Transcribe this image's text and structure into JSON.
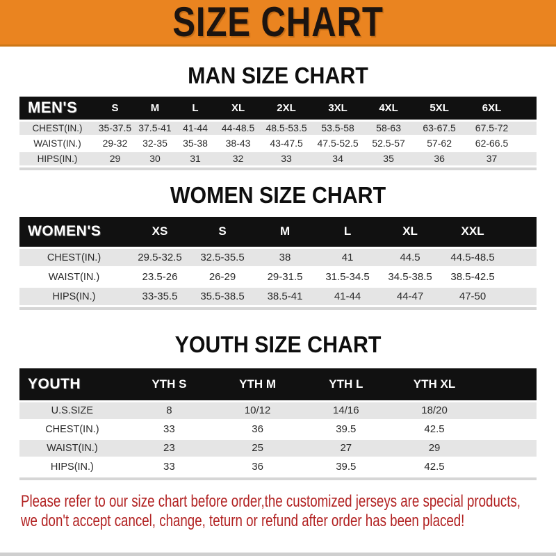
{
  "banner": {
    "title": "SIZE CHART",
    "bg_color": "#EA8420",
    "text_color": "#1c1410"
  },
  "sections": [
    {
      "heading": "MAN SIZE CHART",
      "table": {
        "header_label": "MEN'S",
        "columns": [
          "S",
          "M",
          "L",
          "XL",
          "2XL",
          "3XL",
          "4XL",
          "5XL",
          "6XL"
        ],
        "rows": [
          {
            "label": "CHEST(IN.)",
            "values": [
              "35-37.5",
              "37.5-41",
              "41-44",
              "44-48.5",
              "48.5-53.5",
              "53.5-58",
              "58-63",
              "63-67.5",
              "67.5-72"
            ]
          },
          {
            "label": "WAIST(IN.)",
            "values": [
              "29-32",
              "32-35",
              "35-38",
              "38-43",
              "43-47.5",
              "47.5-52.5",
              "52.5-57",
              "57-62",
              "62-66.5"
            ]
          },
          {
            "label": "HIPS(IN.)",
            "values": [
              "29",
              "30",
              "31",
              "32",
              "33",
              "34",
              "35",
              "36",
              "37"
            ]
          }
        ]
      }
    },
    {
      "heading": "WOMEN SIZE CHART",
      "table": {
        "header_label": "WOMEN'S",
        "columns": [
          "XS",
          "S",
          "M",
          "L",
          "XL",
          "XXL"
        ],
        "rows": [
          {
            "label": "CHEST(IN.)",
            "values": [
              "29.5-32.5",
              "32.5-35.5",
              "38",
              "41",
              "44.5",
              "44.5-48.5"
            ]
          },
          {
            "label": "WAIST(IN.)",
            "values": [
              "23.5-26",
              "26-29",
              "29-31.5",
              "31.5-34.5",
              "34.5-38.5",
              "38.5-42.5"
            ]
          },
          {
            "label": "HIPS(IN.)",
            "values": [
              "33-35.5",
              "35.5-38.5",
              "38.5-41",
              "41-44",
              "44-47",
              "47-50"
            ]
          }
        ]
      }
    },
    {
      "heading": "YOUTH SIZE CHART",
      "table": {
        "header_label": "YOUTH",
        "columns": [
          "YTH S",
          "YTH M",
          "YTH L",
          "YTH XL"
        ],
        "rows": [
          {
            "label": "U.S.SIZE",
            "values": [
              "8",
              "10/12",
              "14/16",
              "18/20"
            ]
          },
          {
            "label": "CHEST(IN.)",
            "values": [
              "33",
              "36",
              "39.5",
              "42.5"
            ]
          },
          {
            "label": "WAIST(IN.)",
            "values": [
              "23",
              "25",
              "27",
              "29"
            ]
          },
          {
            "label": "HIPS(IN.)",
            "values": [
              "33",
              "36",
              "39.5",
              "42.5"
            ]
          }
        ]
      }
    }
  ],
  "footer": {
    "line1": "Please refer to our size chart before order,the customized jerseys are special products,",
    "line2": "we don't accept cancel, change, teturn or refund after order has been placed!",
    "text_color": "#B22222"
  }
}
